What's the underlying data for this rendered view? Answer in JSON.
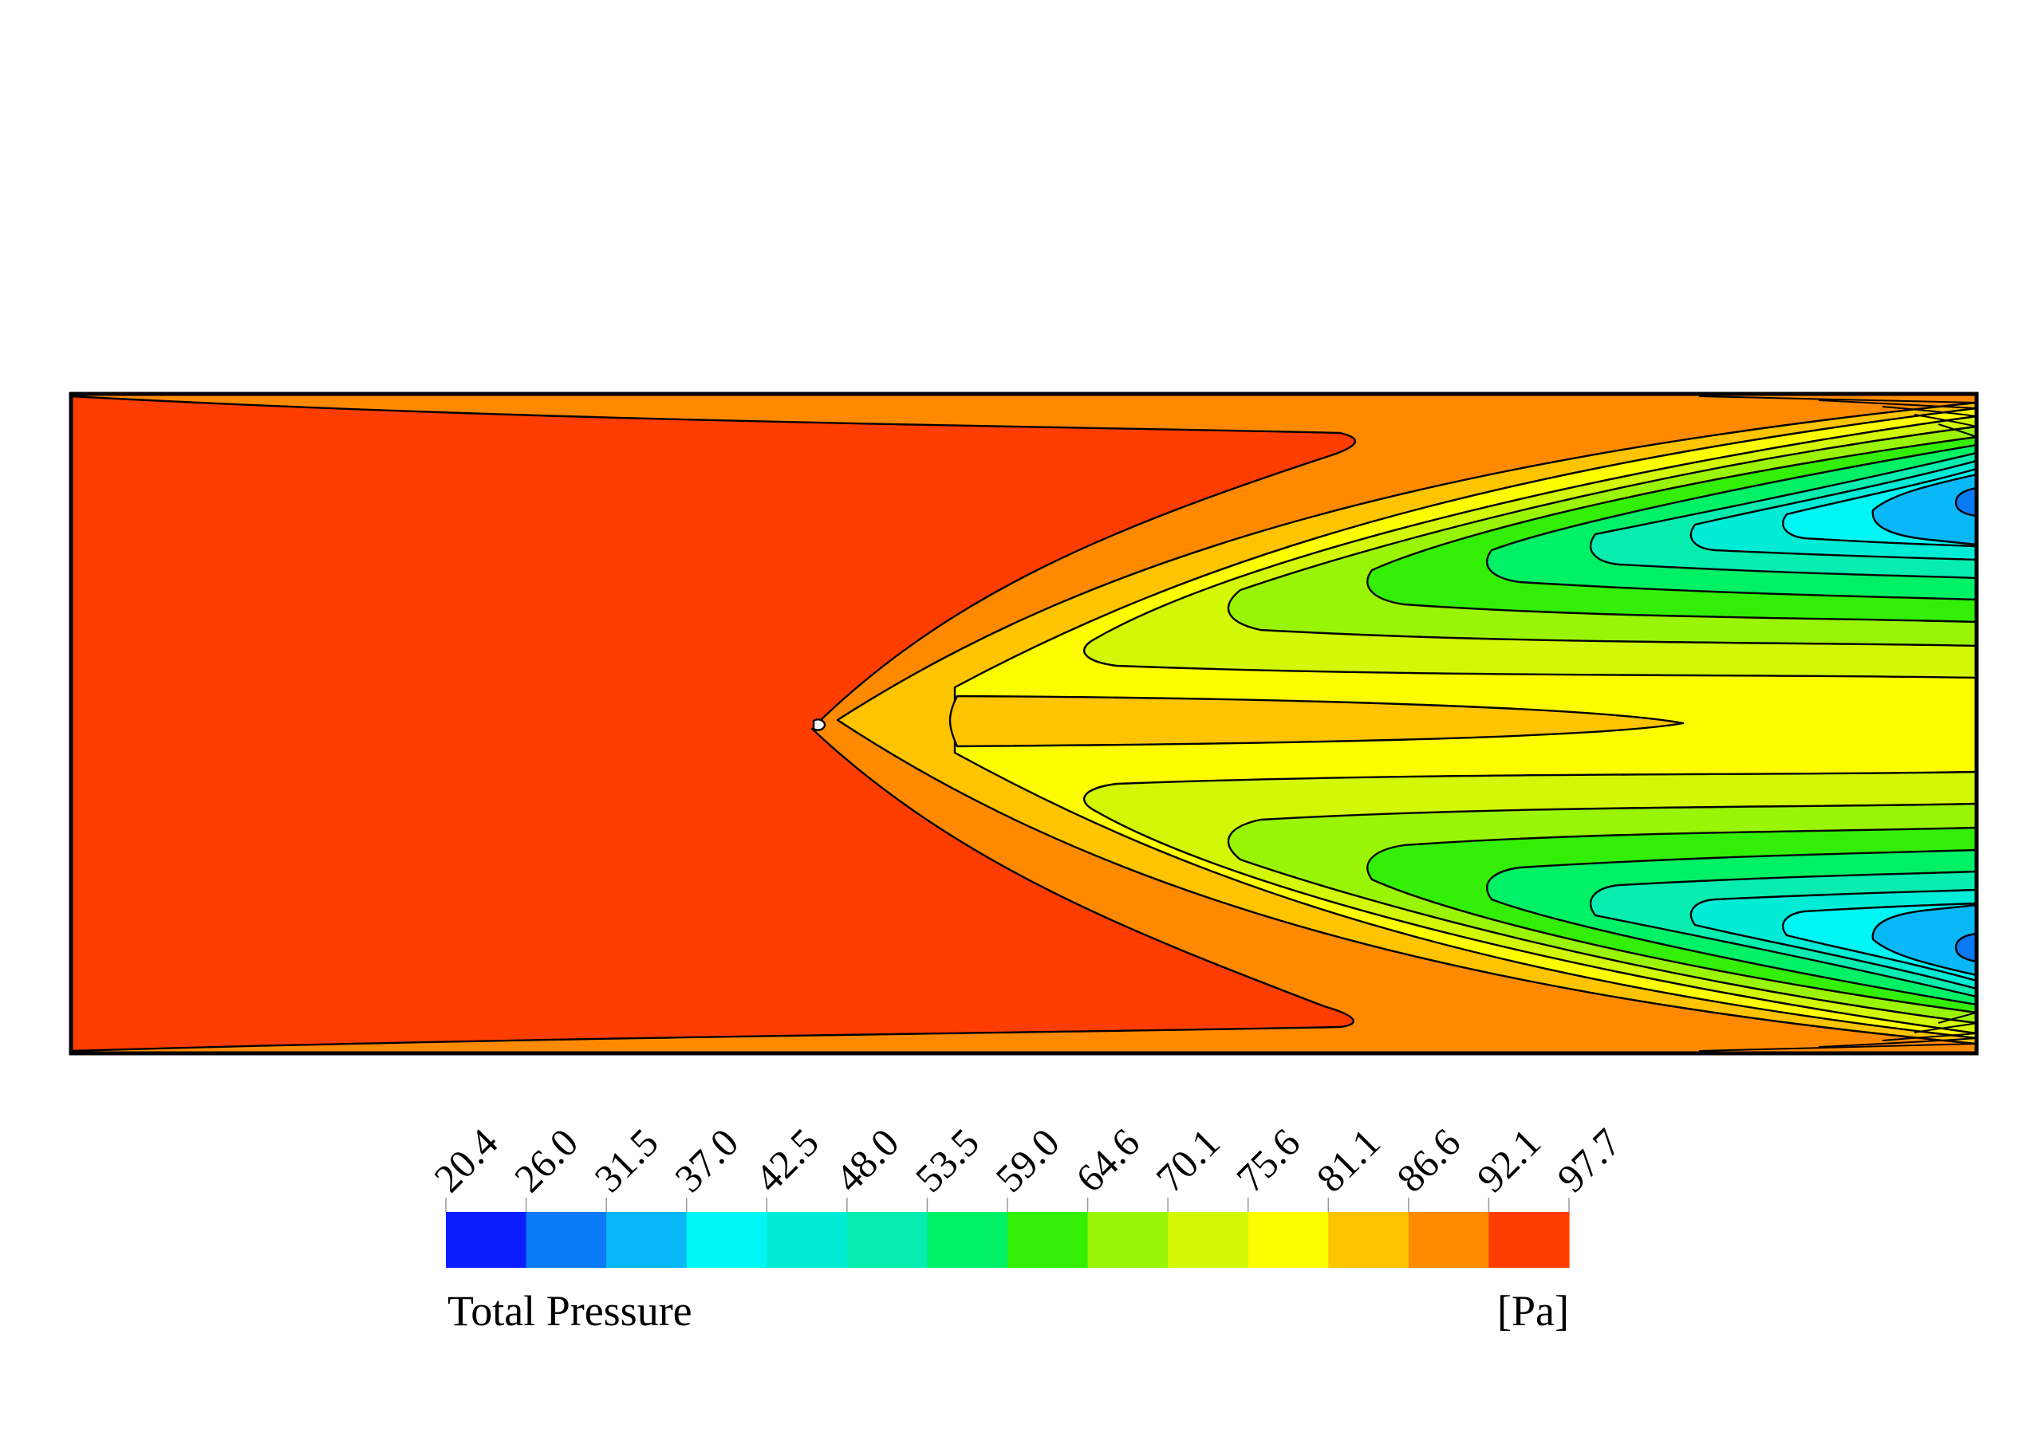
{
  "chart_data": {
    "type": "heatmap",
    "title": "",
    "variable": "Total Pressure",
    "unit": "[Pa]",
    "range": [
      20.4,
      97.7
    ],
    "tick_labels": [
      "20.4",
      "26.0",
      "31.5",
      "37.0",
      "42.5",
      "48.0",
      "53.5",
      "59.0",
      "64.6",
      "70.1",
      "75.6",
      "81.1",
      "86.6",
      "92.1",
      "97.7"
    ],
    "levels": [
      20.4,
      26.0,
      31.5,
      37.0,
      42.5,
      48.0,
      53.5,
      59.0,
      64.6,
      70.1,
      75.6,
      81.1,
      86.6,
      92.1,
      97.7
    ],
    "level_colors": [
      "#0a1dff",
      "#0a7af5",
      "#08b8f6",
      "#00f5f5",
      "#00ecd7",
      "#06edaf",
      "#00f066",
      "#33ee05",
      "#9af406",
      "#d2f707",
      "#fefc00",
      "#fec400",
      "#ff8a00",
      "#ff3d00"
    ],
    "colorbar_orientation": "horizontal",
    "colorbar_placement": "bottom",
    "tick_label_rotation": "diagonal",
    "legend_placement": "bottom",
    "grid": false,
    "field_description": "Uniform high total pressure (92.1–97.7 Pa) over the left half of a rectangular channel; a V-shaped wake starts at a point source at mid-height (x ≈ 0.39 of the channel length) and widens downstream, with lowest total pressure (≈20–31 Pa) in two lobes near the right outlet at about 16% and 84% of the channel height."
  }
}
